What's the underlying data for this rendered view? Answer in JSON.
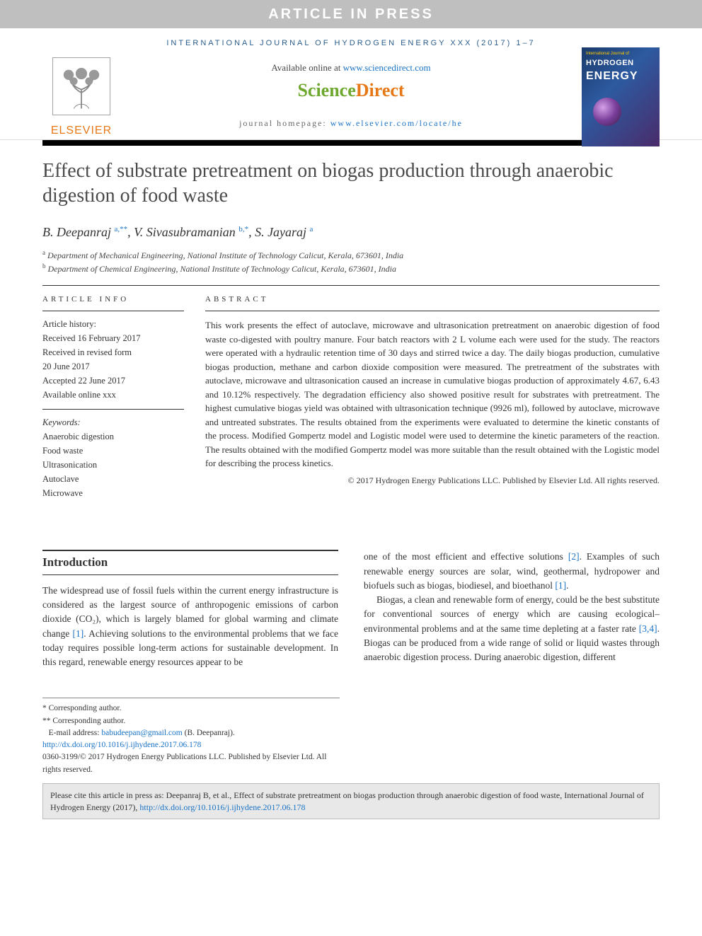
{
  "banner": {
    "article_in_press": "ARTICLE IN PRESS",
    "journal_line": "INTERNATIONAL JOURNAL OF HYDROGEN ENERGY XXX (2017) 1–7"
  },
  "header": {
    "available_text": "Available online at ",
    "available_url": "www.sciencedirect.com",
    "sciencedirect_left": "Science",
    "sciencedirect_right": "Direct",
    "homepage_label": "journal homepage: ",
    "homepage_url": "www.elsevier.com/locate/he",
    "elsevier_label": "ELSEVIER",
    "cover": {
      "top_line": "International Journal of",
      "hydrogen": "HYDROGEN",
      "energy": "ENERGY"
    }
  },
  "article": {
    "title": "Effect of substrate pretreatment on biogas production through anaerobic digestion of food waste",
    "authors_html": "B. Deepanraj <span class='sup'>a,**</span>, V. Sivasubramanian <span class='sup'>b,*</span>, S. Jayaraj <span class='sup'>a</span>",
    "affiliations": [
      "a Department of Mechanical Engineering, National Institute of Technology Calicut, Kerala, 673601, India",
      "b Department of Chemical Engineering, National Institute of Technology Calicut, Kerala, 673601, India"
    ]
  },
  "article_info": {
    "heading": "ARTICLE INFO",
    "history_label": "Article history:",
    "history": [
      "Received 16 February 2017",
      "Received in revised form",
      "20 June 2017",
      "Accepted 22 June 2017",
      "Available online xxx"
    ],
    "keywords_label": "Keywords:",
    "keywords": [
      "Anaerobic digestion",
      "Food waste",
      "Ultrasonication",
      "Autoclave",
      "Microwave"
    ]
  },
  "abstract": {
    "heading": "ABSTRACT",
    "text": "This work presents the effect of autoclave, microwave and ultrasonication pretreatment on anaerobic digestion of food waste co-digested with poultry manure. Four batch reactors with 2 L volume each were used for the study. The reactors were operated with a hydraulic retention time of 30 days and stirred twice a day. The daily biogas production, cumulative biogas production, methane and carbon dioxide composition were measured. The pretreatment of the substrates with autoclave, microwave and ultrasonication caused an increase in cumulative biogas production of approximately 4.67, 6.43 and 10.12% respectively. The degradation efficiency also showed positive result for substrates with pretreatment. The highest cumulative biogas yield was obtained with ultrasonication technique (9926 ml), followed by autoclave, microwave and untreated substrates. The results obtained from the experiments were evaluated to determine the kinetic constants of the process. Modified Gompertz model and Logistic model were used to determine the kinetic parameters of the reaction. The results obtained with the modified Gompertz model was more suitable than the result obtained with the Logistic model for describing the process kinetics.",
    "copyright": "© 2017 Hydrogen Energy Publications LLC. Published by Elsevier Ltd. All rights reserved."
  },
  "body": {
    "intro_heading": "Introduction",
    "col1_p1": "The widespread use of fossil fuels within the current energy infrastructure is considered as the largest source of anthropogenic emissions of carbon dioxide (CO₂), which is largely blamed for global warming and climate change [1]. Achieving solutions to the environmental problems that we face today requires possible long-term actions for sustainable development. In this regard, renewable energy resources appear to be",
    "col2_p1": "one of the most efficient and effective solutions [2]. Examples of such renewable energy sources are solar, wind, geothermal, hydropower and biofuels such as biogas, biodiesel, and bioethanol [1].",
    "col2_p2": "Biogas, a clean and renewable form of energy, could be the best substitute for conventional sources of energy which are causing ecological–environmental problems and at the same time depleting at a faster rate [3,4]. Biogas can be produced from a wide range of solid or liquid wastes through anaerobic digestion process. During anaerobic digestion, different",
    "refs": {
      "r1": "[1]",
      "r2": "[2]",
      "r34": "[3,4]"
    }
  },
  "footnotes": {
    "corr1": "* Corresponding author.",
    "corr2": "** Corresponding author.",
    "email_label": "E-mail address: ",
    "email": "babudeepan@gmail.com",
    "email_name": " (B. Deepanraj).",
    "doi": "http://dx.doi.org/10.1016/j.ijhydene.2017.06.178",
    "issn_copy": "0360-3199/© 2017 Hydrogen Energy Publications LLC. Published by Elsevier Ltd. All rights reserved."
  },
  "citation": {
    "text_prefix": "Please cite this article in press as: Deepanraj B, et al., Effect of substrate pretreatment on biogas production through anaerobic digestion of food waste, International Journal of Hydrogen Energy (2017), ",
    "doi": "http://dx.doi.org/10.1016/j.ijhydene.2017.06.178"
  },
  "colors": {
    "link": "#1a73c5",
    "elsevier_orange": "#e67817",
    "sd_green": "#6fa82e",
    "banner_gray": "#bfbfbf",
    "header_blue": "#2a5c8a"
  }
}
